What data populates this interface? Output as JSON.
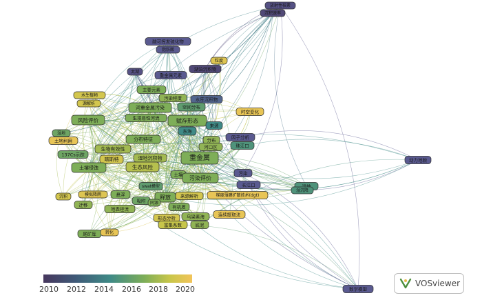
{
  "colors": {
    "c2010": "#47375e",
    "c2012": "#5a5a90",
    "c2014": "#3f8a86",
    "c2016": "#7eae58",
    "c2018": "#c8c64a",
    "c2020": "#f2c45a"
  },
  "legend": {
    "ticks": [
      "2010",
      "2012",
      "2014",
      "2016",
      "2018",
      "2020"
    ]
  },
  "brand": {
    "label": "VOSviewer",
    "icon": "vosviewer-logo-icon"
  },
  "nodes": [
    {
      "id": "fangsheyuan",
      "label": "放射性核素",
      "year": 2011.5
    },
    {
      "id": "chenjisulv",
      "label": "沉积速率",
      "year": 2011.0
    },
    {
      "id": "duohuanfang",
      "label": "酸可挥发硫化物",
      "year": 2012.0
    },
    {
      "id": "jianxiangbi",
      "label": "脂肪酸",
      "year": 2012.0
    },
    {
      "id": "lidu",
      "label": "粒度",
      "year": 2019.0
    },
    {
      "id": "dafeng",
      "label": "太湖",
      "year": 2011.5
    },
    {
      "id": "zhongjinshuyuansu",
      "label": "重金属元素",
      "year": 2012.0
    },
    {
      "id": "hupochenjiwu",
      "label": "湖泊沉积物",
      "year": 2011.0
    },
    {
      "id": "zhuyaoyuansu",
      "label": "主要元素",
      "year": 2016.0
    },
    {
      "id": "shuishengzhiwu",
      "label": "水生植物",
      "year": 2018.5
    },
    {
      "id": "wuranchengdu",
      "label": "污染程度",
      "year": 2016.5
    },
    {
      "id": "shuikuchenjiwu",
      "label": "水库沉积物",
      "year": 2012.5
    },
    {
      "id": "qinxifenxi",
      "label": "源解析",
      "year": 2018.5
    },
    {
      "id": "hezhongjinshu",
      "label": "河重金属污染",
      "year": 2016.0
    },
    {
      "id": "kongjianfenbu",
      "label": "空间分布",
      "year": 2015.0
    },
    {
      "id": "shikongbianhua",
      "label": "时空变化",
      "year": 2019.5
    },
    {
      "id": "shengtaidaxing",
      "label": "生境易性河流",
      "year": 2016.0
    },
    {
      "id": "fengxianpingjia",
      "label": "风险评价",
      "year": 2016.0
    },
    {
      "id": "fucunxingtai",
      "label": "赋存形态",
      "year": 2016.0
    },
    {
      "id": "laizi",
      "label": "来源",
      "year": 2014.0
    },
    {
      "id": "donghai",
      "label": "东海",
      "year": 2014.0
    },
    {
      "id": "shidi",
      "label": "湿地",
      "year": 2015.5
    },
    {
      "id": "zhuziyuanfenxi",
      "label": "因子分析",
      "year": 2012.0
    },
    {
      "id": "tudiliyong",
      "label": "土地利用",
      "year": 2019.5
    },
    {
      "id": "fenbutezheng",
      "label": "分布特征",
      "year": 2016.0
    },
    {
      "id": "fenbu",
      "label": "分布",
      "year": 2016.5
    },
    {
      "id": "zhujiangkou",
      "label": "珠江口",
      "year": 2014.5
    },
    {
      "id": "shengwuyouxiaoxing",
      "label": "生物有效性",
      "year": 2017.0
    },
    {
      "id": "ziyuanliti",
      "label": "河口区",
      "year": 2016.5
    },
    {
      "id": "137cs",
      "label": "137Cs示踪",
      "year": 2015.5
    },
    {
      "id": "shidichenjiwu",
      "label": "湿地沉积物",
      "year": 2017.0
    },
    {
      "id": "zhongjinshu",
      "label": "重金属",
      "year": 2016.0
    },
    {
      "id": "dongtaigudu",
      "label": "动力地貌",
      "year": 2012.0
    },
    {
      "id": "kexinsu",
      "label": "喀斯特",
      "year": 2018.5
    },
    {
      "id": "shengtaifengxian",
      "label": "生态风险",
      "year": 2017.5
    },
    {
      "id": "turangwuran",
      "label": "土壤侵蚀",
      "year": 2016.0
    },
    {
      "id": "wuran",
      "label": "污染",
      "year": 2012.0
    },
    {
      "id": "turang",
      "label": "土壤",
      "year": 2016.0
    },
    {
      "id": "wuranpingjia",
      "label": "污染评价",
      "year": 2016.0
    },
    {
      "id": "changjiangkou",
      "label": "长江口",
      "year": 2012.0
    },
    {
      "id": "fuchenmoxing",
      "label": "swat模型",
      "year": 2015.0
    },
    {
      "id": "shuiku",
      "label": "湿地",
      "year": 2014.5
    },
    {
      "id": "mosiyijiang",
      "label": "模拟降雨",
      "year": 2019.0
    },
    {
      "id": "chenji",
      "label": "沉积",
      "year": 2018.5
    },
    {
      "id": "xuanfu",
      "label": "悬浮",
      "year": 2016.0
    },
    {
      "id": "shifang",
      "label": "释放",
      "year": 2016.0
    },
    {
      "id": "laiyuanjiexi",
      "label": "来源解析",
      "year": 2018.5
    },
    {
      "id": "tidumoxing",
      "label": "梯度薄膜扩散技术(dgt)",
      "year": 2019.5
    },
    {
      "id": "qianyi",
      "label": "迁移",
      "year": 2016.5
    },
    {
      "id": "xifu",
      "label": "吸附",
      "year": 2015.5
    },
    {
      "id": "dixiashuijiao",
      "label": "地表径流",
      "year": 2016.5
    },
    {
      "id": "youjizhi",
      "label": "有机质",
      "year": 2016.0
    },
    {
      "id": "lianxutiquifa",
      "label": "连续提取法",
      "year": 2019.5
    },
    {
      "id": "xingtaifenxi",
      "label": "形态分析",
      "year": 2018.5
    },
    {
      "id": "wulianggong",
      "label": "乌梁素海",
      "year": 2016.5
    },
    {
      "id": "fujixishu",
      "label": "富集系数",
      "year": 2018.0
    },
    {
      "id": "dini",
      "label": "底泥",
      "year": 2016.5
    },
    {
      "id": "weikuangku",
      "label": "尾矿库",
      "year": 2016.0
    },
    {
      "id": "zhuanhua",
      "label": "转化",
      "year": 2019.5
    },
    {
      "id": "diyaochenjiang",
      "label": "湿沉降",
      "year": 2014.5
    },
    {
      "id": "shuxuemoxing",
      "label": "数学模型",
      "year": 2012.0
    },
    {
      "id": "tongyuan",
      "label": "同源",
      "year": 2016.0
    }
  ]
}
